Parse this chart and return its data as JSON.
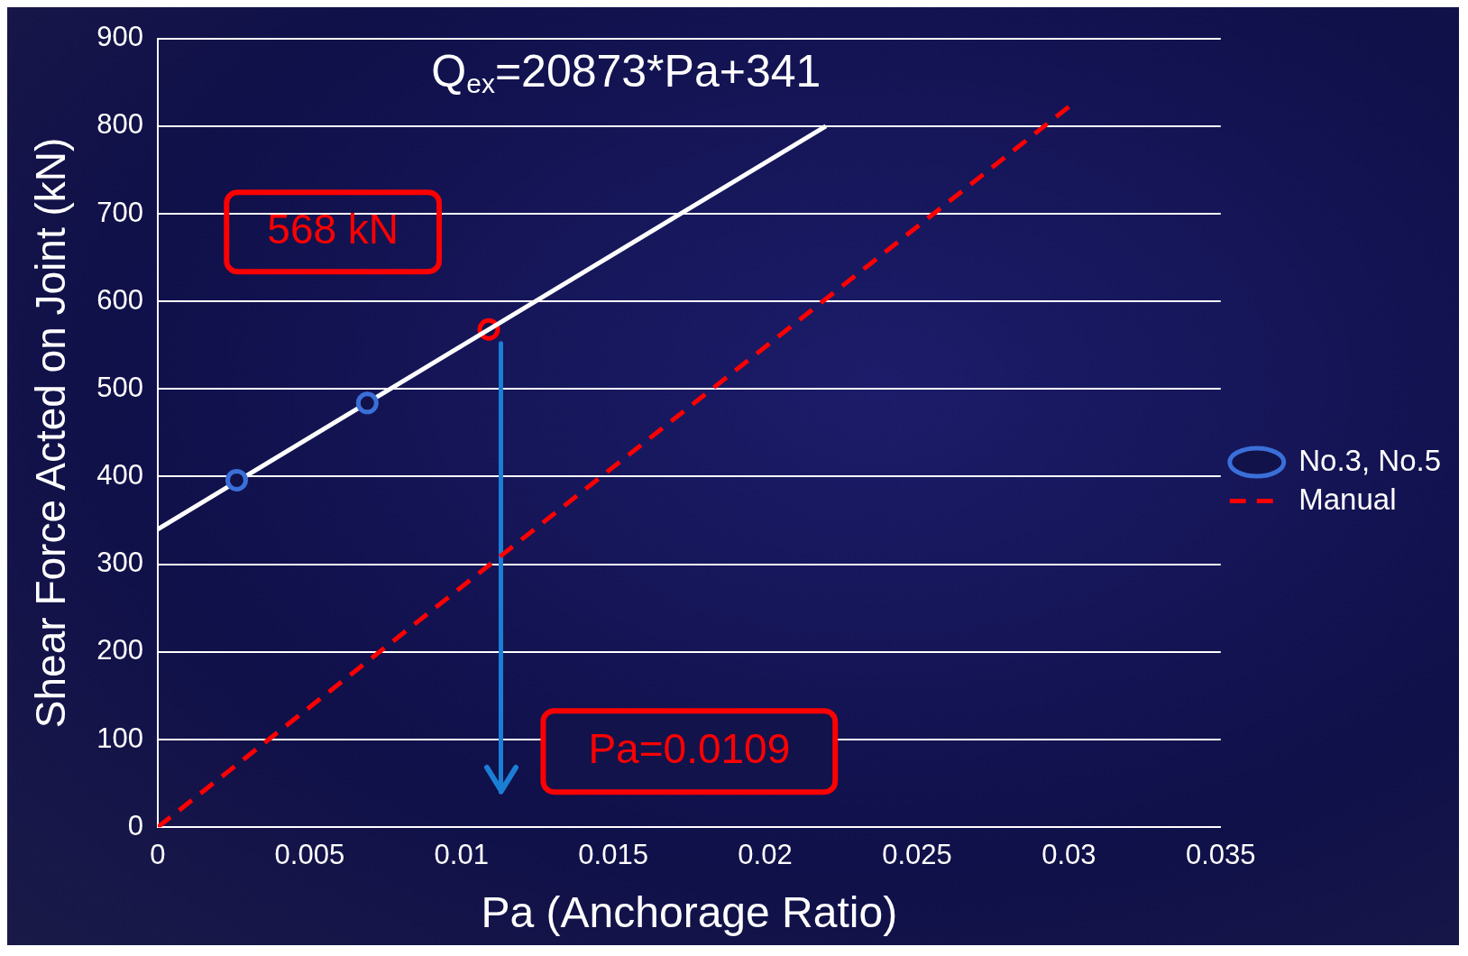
{
  "chart_data": {
    "type": "scatter",
    "xlabel": "Pa (Anchorage Ratio)",
    "ylabel": "Shear Force Acted on Joint (kN)",
    "xlim": [
      0,
      0.035
    ],
    "xticks": [
      0,
      0.005,
      0.01,
      0.015,
      0.02,
      0.025,
      0.03,
      0.035
    ],
    "ylim": [
      0,
      900
    ],
    "yticks": [
      0,
      100,
      200,
      300,
      400,
      500,
      600,
      700,
      800,
      900
    ],
    "grid": "y",
    "legend": "right",
    "series": [
      {
        "name": "No.3, No.5",
        "marker": "circle",
        "color": "#3a6fd8",
        "x": [
          0.0026,
          0.0069
        ],
        "values": [
          396,
          484
        ]
      },
      {
        "type": "line",
        "marker": "none",
        "line_style": "solid",
        "color": "#ffffff",
        "x": [
          0,
          0.022
        ],
        "values": [
          340,
          800
        ]
      },
      {
        "name": "Manual",
        "type": "line",
        "marker": "none",
        "line_style": "dashed",
        "color": "#ff0000",
        "x": [
          0,
          0.03
        ],
        "values": [
          0,
          822
        ]
      },
      {
        "marker": "circle",
        "color": "#ff0000",
        "x": [
          0.0109
        ],
        "values": [
          568
        ]
      },
      {
        "type": "line",
        "marker": "none",
        "line_style": "solid",
        "color": "#1a7fd4",
        "x": [
          0.0113,
          0.0113
        ],
        "values": [
          552,
          40
        ]
      }
    ],
    "annotations": [
      "Q$_{ex}$=20873*Pa+341",
      {
        "text": "568 kN",
        "x": 0.0109,
        "y": 568
      },
      "Pa=0.0109"
    ]
  }
}
